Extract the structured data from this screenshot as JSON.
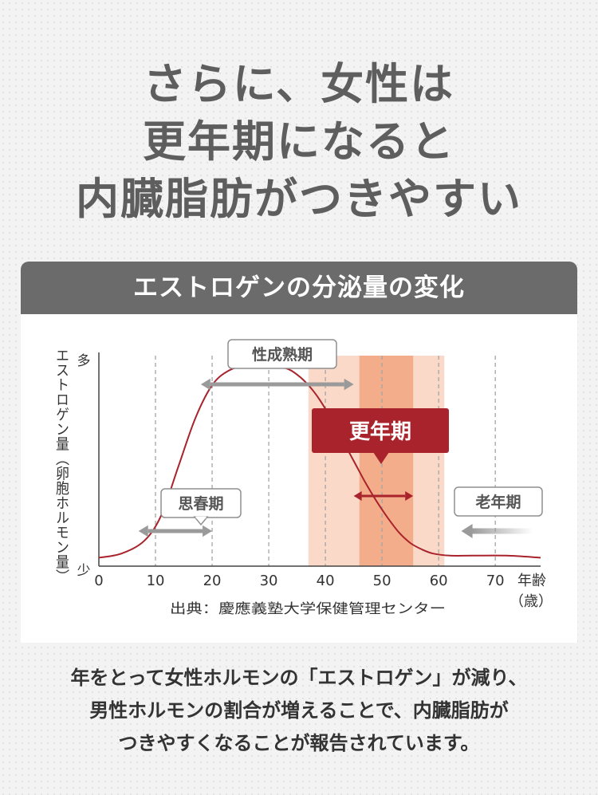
{
  "headline": {
    "line1": "さらに、女性は",
    "line2": "更年期になると",
    "line3": "内臓脂肪がつきやすい"
  },
  "panel": {
    "title": "エストロゲンの分泌量の変化"
  },
  "chart_data": {
    "type": "line",
    "title": "エストロゲンの分泌量の変化",
    "ylabel": "エストロゲン量（卵胞ホルモン量）",
    "xlabel": "年齢",
    "xlabel_unit": "（歳）",
    "y_high_label": "多",
    "y_low_label": "少",
    "xlim": [
      0,
      78
    ],
    "ylim": [
      0,
      1
    ],
    "x_ticks": [
      0,
      10,
      20,
      30,
      40,
      50,
      60,
      70
    ],
    "gridlines_x": [
      10,
      20,
      30,
      40,
      50,
      60,
      70
    ],
    "series": [
      {
        "color": "#a8232b",
        "x": [
          0,
          4,
          8,
          11,
          14,
          17,
          20,
          23,
          26,
          30,
          33,
          35,
          37,
          39,
          41,
          43,
          45,
          47,
          49,
          51,
          53,
          55,
          57,
          59,
          62,
          66,
          72,
          78
        ],
        "y": [
          0.04,
          0.06,
          0.12,
          0.24,
          0.47,
          0.7,
          0.86,
          0.93,
          0.95,
          0.95,
          0.94,
          0.91,
          0.86,
          0.79,
          0.7,
          0.6,
          0.5,
          0.4,
          0.31,
          0.23,
          0.16,
          0.11,
          0.08,
          0.06,
          0.05,
          0.05,
          0.05,
          0.04
        ]
      }
    ],
    "bands": [
      {
        "from": 37,
        "to": 61,
        "color": "#fbd9c8"
      },
      {
        "from": 46,
        "to": 55.5,
        "color": "#f3ad8b"
      }
    ],
    "periods": [
      {
        "label": "思春期",
        "from": 7,
        "to": 20,
        "color": "#9a9a9a"
      },
      {
        "label": "性成熟期",
        "from": 18,
        "to": 45,
        "color": "#9a9a9a"
      },
      {
        "label": "更年期",
        "from": 45,
        "to": 55.5,
        "color": "#a8232b"
      },
      {
        "label": "老年期",
        "from": 64,
        "to": 78,
        "color": "#9a9a9a"
      }
    ],
    "source": "出典：慶應義塾大学保健管理センター"
  },
  "caption": {
    "line1": "年をとって女性ホルモンの「エストロゲン」が減り、",
    "line2": "男性ホルモンの割合が増えることで、内臓脂肪が",
    "line3": "つきやすくなることが報告されています。"
  }
}
